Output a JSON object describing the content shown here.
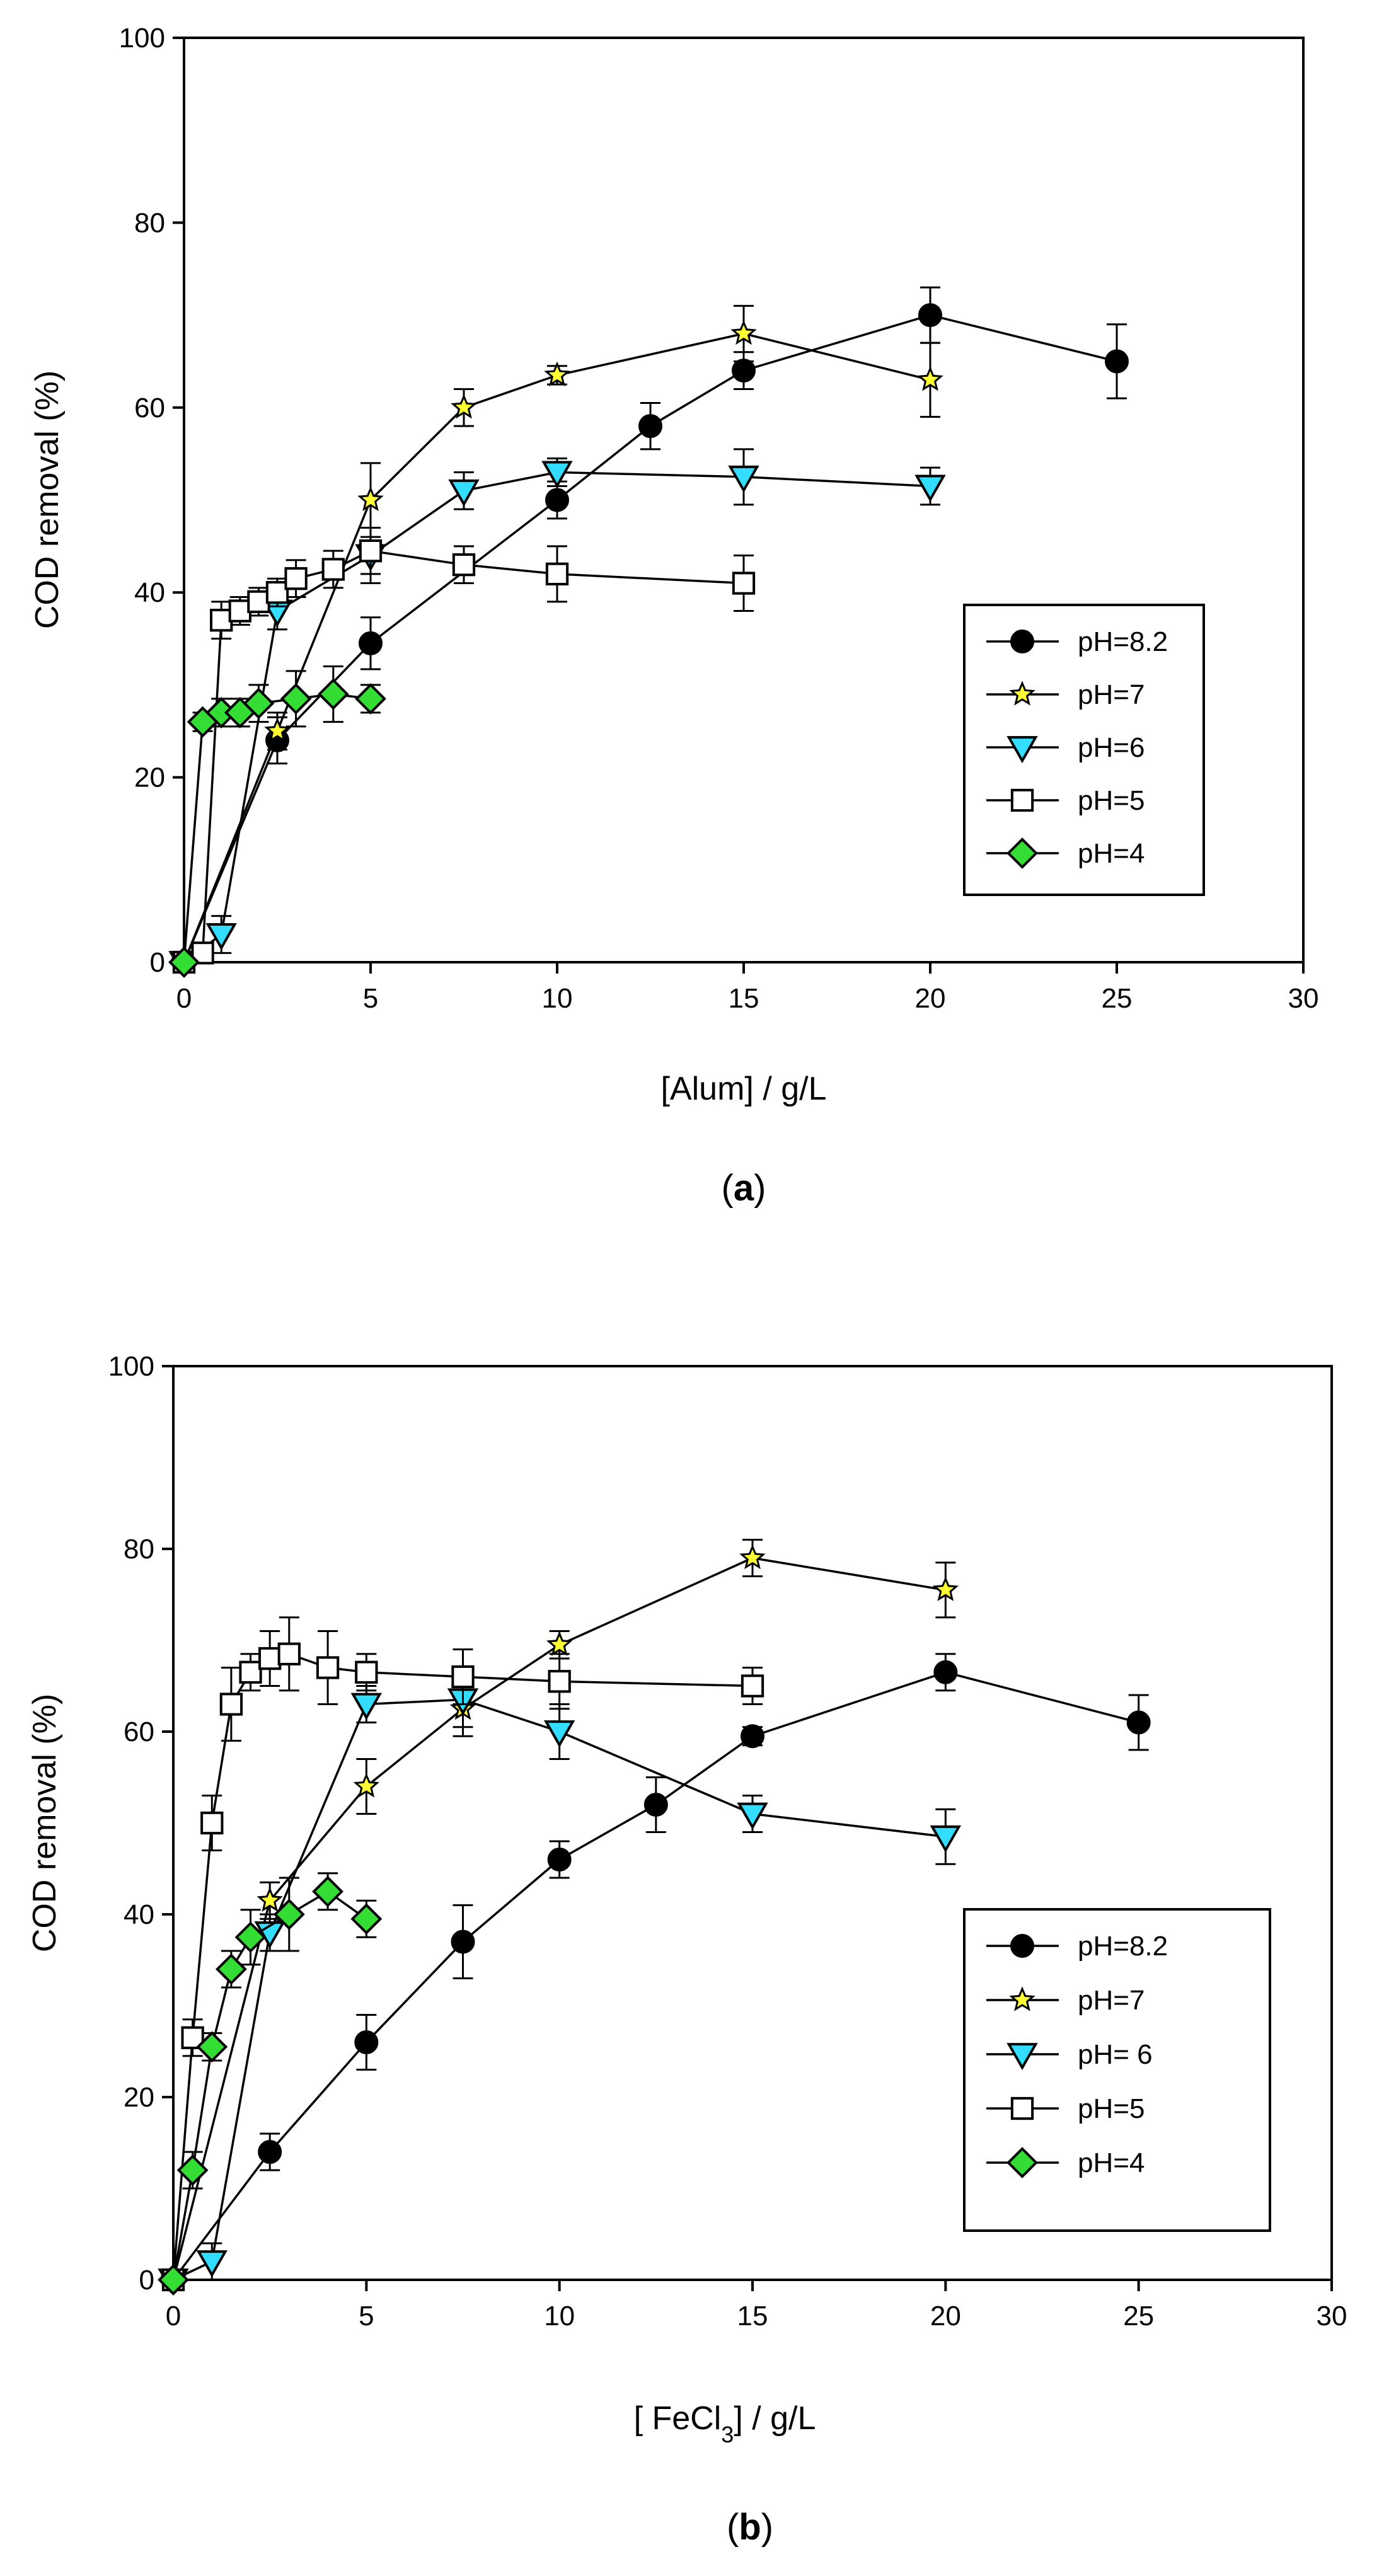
{
  "chart_data": [
    {
      "type": "line",
      "panel_label": "a",
      "title": "",
      "xlabel": "[Alum] / g/L",
      "ylabel": "COD removal (%)",
      "xlim": [
        0,
        30
      ],
      "ylim": [
        0,
        100
      ],
      "xticks": [
        "0",
        "5",
        "10",
        "15",
        "20",
        "25",
        "30"
      ],
      "yticks": [
        "0",
        "20",
        "40",
        "60",
        "80",
        "100"
      ],
      "error_bars": true,
      "grid": false,
      "legend_position": "center-right",
      "series": [
        {
          "name": "pH=8.2",
          "marker": "circle",
          "color": "#000000",
          "x": [
            0,
            2.5,
            5,
            10,
            12.5,
            15,
            20,
            25
          ],
          "y": [
            0,
            24,
            34.5,
            50,
            58,
            64,
            70,
            65
          ],
          "err": [
            0,
            2.5,
            2.8,
            2,
            2.5,
            2,
            3,
            4
          ]
        },
        {
          "name": "pH=7",
          "marker": "star",
          "color": "#ffff33",
          "x": [
            0,
            2.5,
            5,
            7.5,
            10,
            15,
            20
          ],
          "y": [
            0,
            25,
            50,
            60,
            63.5,
            68,
            63
          ],
          "err": [
            0,
            2,
            4,
            2,
            1,
            3,
            4
          ]
        },
        {
          "name": "pH=6",
          "marker": "triangle-down",
          "color": "#33ddff",
          "x": [
            0,
            1,
            2.5,
            5,
            7.5,
            10,
            15,
            20
          ],
          "y": [
            0,
            3,
            38,
            44,
            51,
            53,
            52.5,
            51.5
          ],
          "err": [
            0,
            2,
            2,
            3,
            2,
            1.5,
            3,
            2
          ]
        },
        {
          "name": "pH=5",
          "marker": "square",
          "color": "#ffffff",
          "x": [
            0,
            0.5,
            1,
            1.5,
            2,
            2.5,
            3,
            4,
            5,
            7.5,
            10,
            15
          ],
          "y": [
            0,
            1,
            37,
            38,
            39,
            40,
            41.5,
            42.5,
            44.5,
            43,
            42,
            41
          ],
          "err": [
            0,
            1,
            2,
            1.5,
            1.5,
            1.5,
            2,
            2,
            2.5,
            2,
            3,
            3
          ]
        },
        {
          "name": "pH=4",
          "marker": "diamond",
          "color": "#33dd33",
          "x": [
            0,
            0.5,
            1,
            1.5,
            2,
            3,
            4,
            5
          ],
          "y": [
            0,
            26,
            27,
            27,
            28,
            28.5,
            29,
            28.5
          ],
          "err": [
            0,
            1,
            1.5,
            1.5,
            2,
            3,
            3,
            1.5
          ]
        }
      ]
    },
    {
      "type": "line",
      "panel_label": "b",
      "title": "",
      "xlabel_prefix": "[ FeCl",
      "xlabel_sub": "3",
      "xlabel_suffix": "] / g/L",
      "ylabel": "COD removal (%)",
      "xlim": [
        0,
        30
      ],
      "ylim": [
        0,
        100
      ],
      "xticks": [
        "0",
        "5",
        "10",
        "15",
        "20",
        "25",
        "30"
      ],
      "yticks": [
        "0",
        "20",
        "40",
        "60",
        "80",
        "100"
      ],
      "error_bars": true,
      "grid": false,
      "legend_position": "center-right",
      "series": [
        {
          "name": "pH=8.2",
          "marker": "circle",
          "color": "#000000",
          "x": [
            0,
            2.5,
            5,
            7.5,
            10,
            12.5,
            15,
            20,
            25
          ],
          "y": [
            0,
            14,
            26,
            37,
            46,
            52,
            59.5,
            66.5,
            61
          ],
          "err": [
            0,
            2,
            3,
            4,
            2,
            3,
            1,
            2,
            3
          ]
        },
        {
          "name": "pH=7",
          "marker": "star",
          "color": "#ffff33",
          "x": [
            0,
            2.5,
            5,
            7.5,
            10,
            15,
            20
          ],
          "y": [
            0,
            41.5,
            54,
            62.5,
            69.5,
            79,
            75.5
          ],
          "err": [
            0,
            2,
            3,
            3,
            1.5,
            2,
            3
          ]
        },
        {
          "name": "pH= 6",
          "marker": "triangle-down",
          "color": "#33ddff",
          "x": [
            0,
            1,
            2.5,
            5,
            7.5,
            10,
            15,
            20
          ],
          "y": [
            0,
            2,
            38,
            63,
            63.5,
            60,
            51,
            48.5
          ],
          "err": [
            0,
            2,
            2,
            2,
            3,
            3,
            2,
            3
          ]
        },
        {
          "name": "pH=5",
          "marker": "square",
          "color": "#ffffff",
          "x": [
            0,
            0.5,
            1,
            1.5,
            2,
            2.5,
            3,
            4,
            5,
            7.5,
            10,
            15
          ],
          "y": [
            0,
            26.5,
            50,
            63,
            66.5,
            68,
            68.5,
            67,
            66.5,
            66,
            65.5,
            65
          ],
          "err": [
            0,
            2,
            3,
            4,
            2,
            3,
            4,
            4,
            2,
            3,
            3,
            2
          ]
        },
        {
          "name": "pH=4",
          "marker": "diamond",
          "color": "#33dd33",
          "x": [
            0,
            0.5,
            1,
            1.5,
            2,
            3,
            4,
            5
          ],
          "y": [
            0,
            12,
            25.5,
            34,
            37.5,
            40,
            42.5,
            39.5
          ],
          "err": [
            0,
            2,
            1.5,
            2,
            3,
            4,
            2,
            2
          ]
        }
      ]
    }
  ]
}
